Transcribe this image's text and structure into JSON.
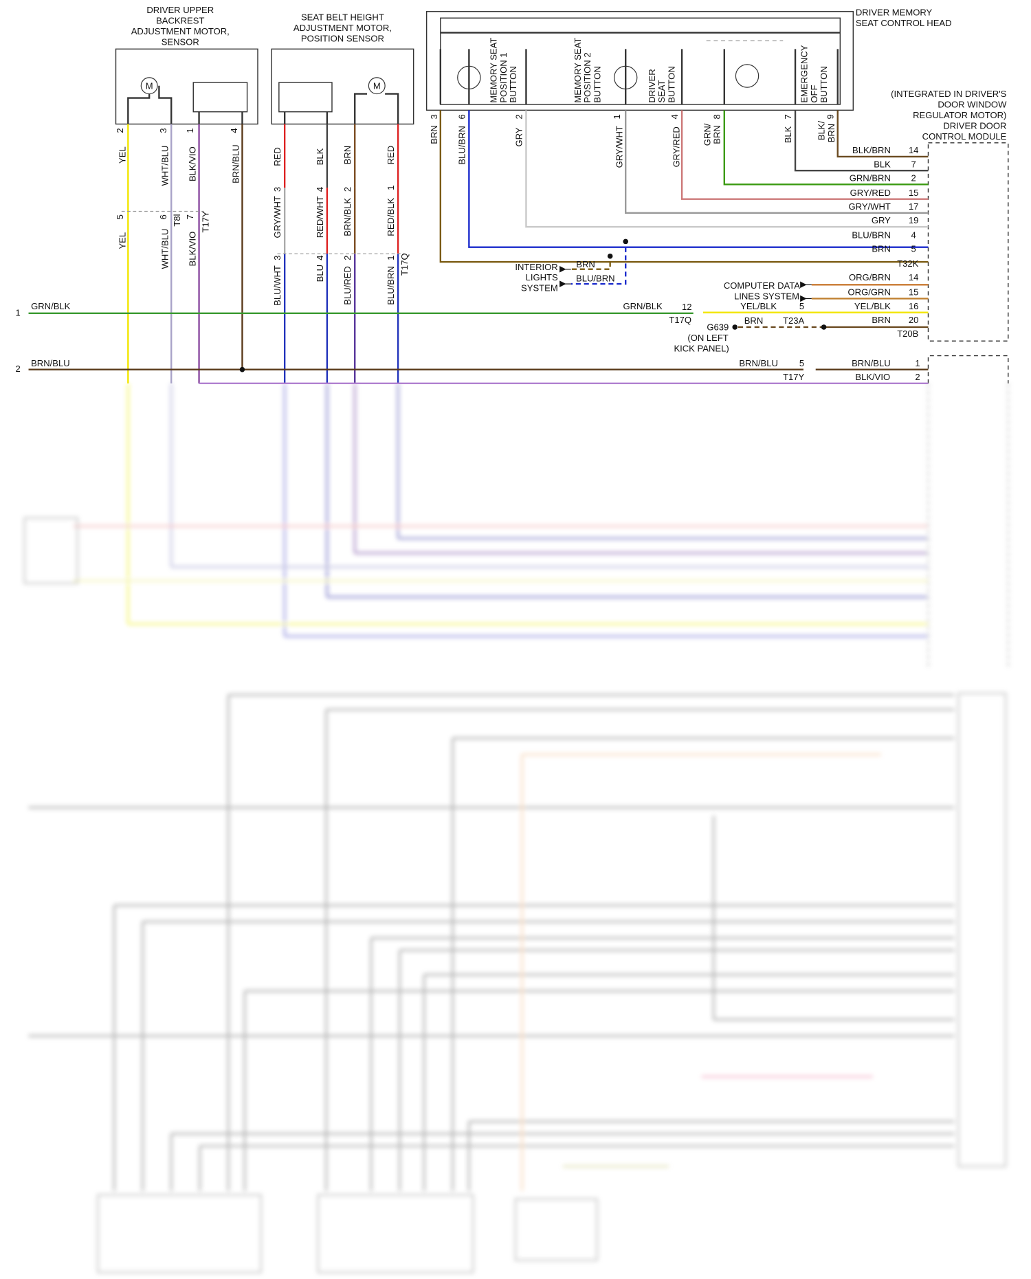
{
  "texts": [
    "DRIVER UPPER",
    "BACKREST",
    "ADJUSTMENT MOTOR,",
    "SENSOR",
    "SEAT BELT HEIGHT",
    "ADJUSTMENT MOTOR,",
    "POSITION SENSOR",
    "DRIVER MEMORY",
    "SEAT CONTROL HEAD",
    "(INTEGRATED IN DRIVER'S",
    "DOOR WINDOW",
    "REGULATOR MOTOR)",
    "DRIVER DOOR",
    "CONTROL MODULE",
    "MEMORY SEAT",
    "POSITION 1",
    "BUTTON",
    "MEMORY SEAT",
    "POSITION 2",
    "BUTTON",
    "DRIVER",
    "SEAT",
    "BUTTON",
    "EMERGENCY",
    "OFF",
    "BUTTON",
    "2",
    "3",
    "1",
    "4",
    "YEL",
    "WHT/BLU",
    "BLK/VIO",
    "BRN/BLU",
    "5",
    "6",
    "7",
    "T8l",
    "T17Y",
    "YEL",
    "WHT/BLU",
    "BLK/VIO",
    "RED",
    "BLK",
    "BRN",
    "RED",
    "GRY/WHT",
    "3",
    "RED/WHT",
    "4",
    "BRN/BLK",
    "2",
    "RED/BLK",
    "1",
    "BLU/WHT",
    "3",
    "BLU",
    "4",
    "BLU/RED",
    "2",
    "BLU/BRN",
    "1",
    "T17Q",
    "3",
    "6",
    "2",
    "1",
    "4",
    "8",
    "7",
    "9",
    "BRN",
    "BLU/BRN",
    "GRY",
    "GRY/WHT",
    "GRY/RED",
    "GRN/",
    "BRN",
    "BLK",
    "BLK/",
    "BRN",
    "BLK/BRN",
    "14",
    "BLK",
    "7",
    "GRN/BRN",
    "2",
    "GRY/RED",
    "15",
    "GRY/WHT",
    "17",
    "GRY",
    "19",
    "BLU/BRN",
    "4",
    "BRN",
    "5",
    "T32K",
    "INTERIOR",
    "LIGHTS",
    "SYSTEM",
    "BRN",
    "BLU/BRN",
    "COMPUTER DATA",
    "LINES SYSTEM",
    "ORG/BRN",
    "14",
    "ORG/GRN",
    "15",
    "YEL/BLK",
    "16",
    "BRN",
    "20",
    "T20B",
    "1",
    "GRN/BLK",
    "GRN/BLK",
    "12",
    "T17Q",
    "YEL/BLK",
    "5",
    "G639",
    "BRN",
    "T23A",
    "(ON LEFT",
    "KICK PANEL)",
    "2",
    "BRN/BLU",
    "BRN/BLU",
    "5",
    "T17Y",
    "BRN/BLU",
    "1",
    "BLK/VIO",
    "2"
  ]
}
